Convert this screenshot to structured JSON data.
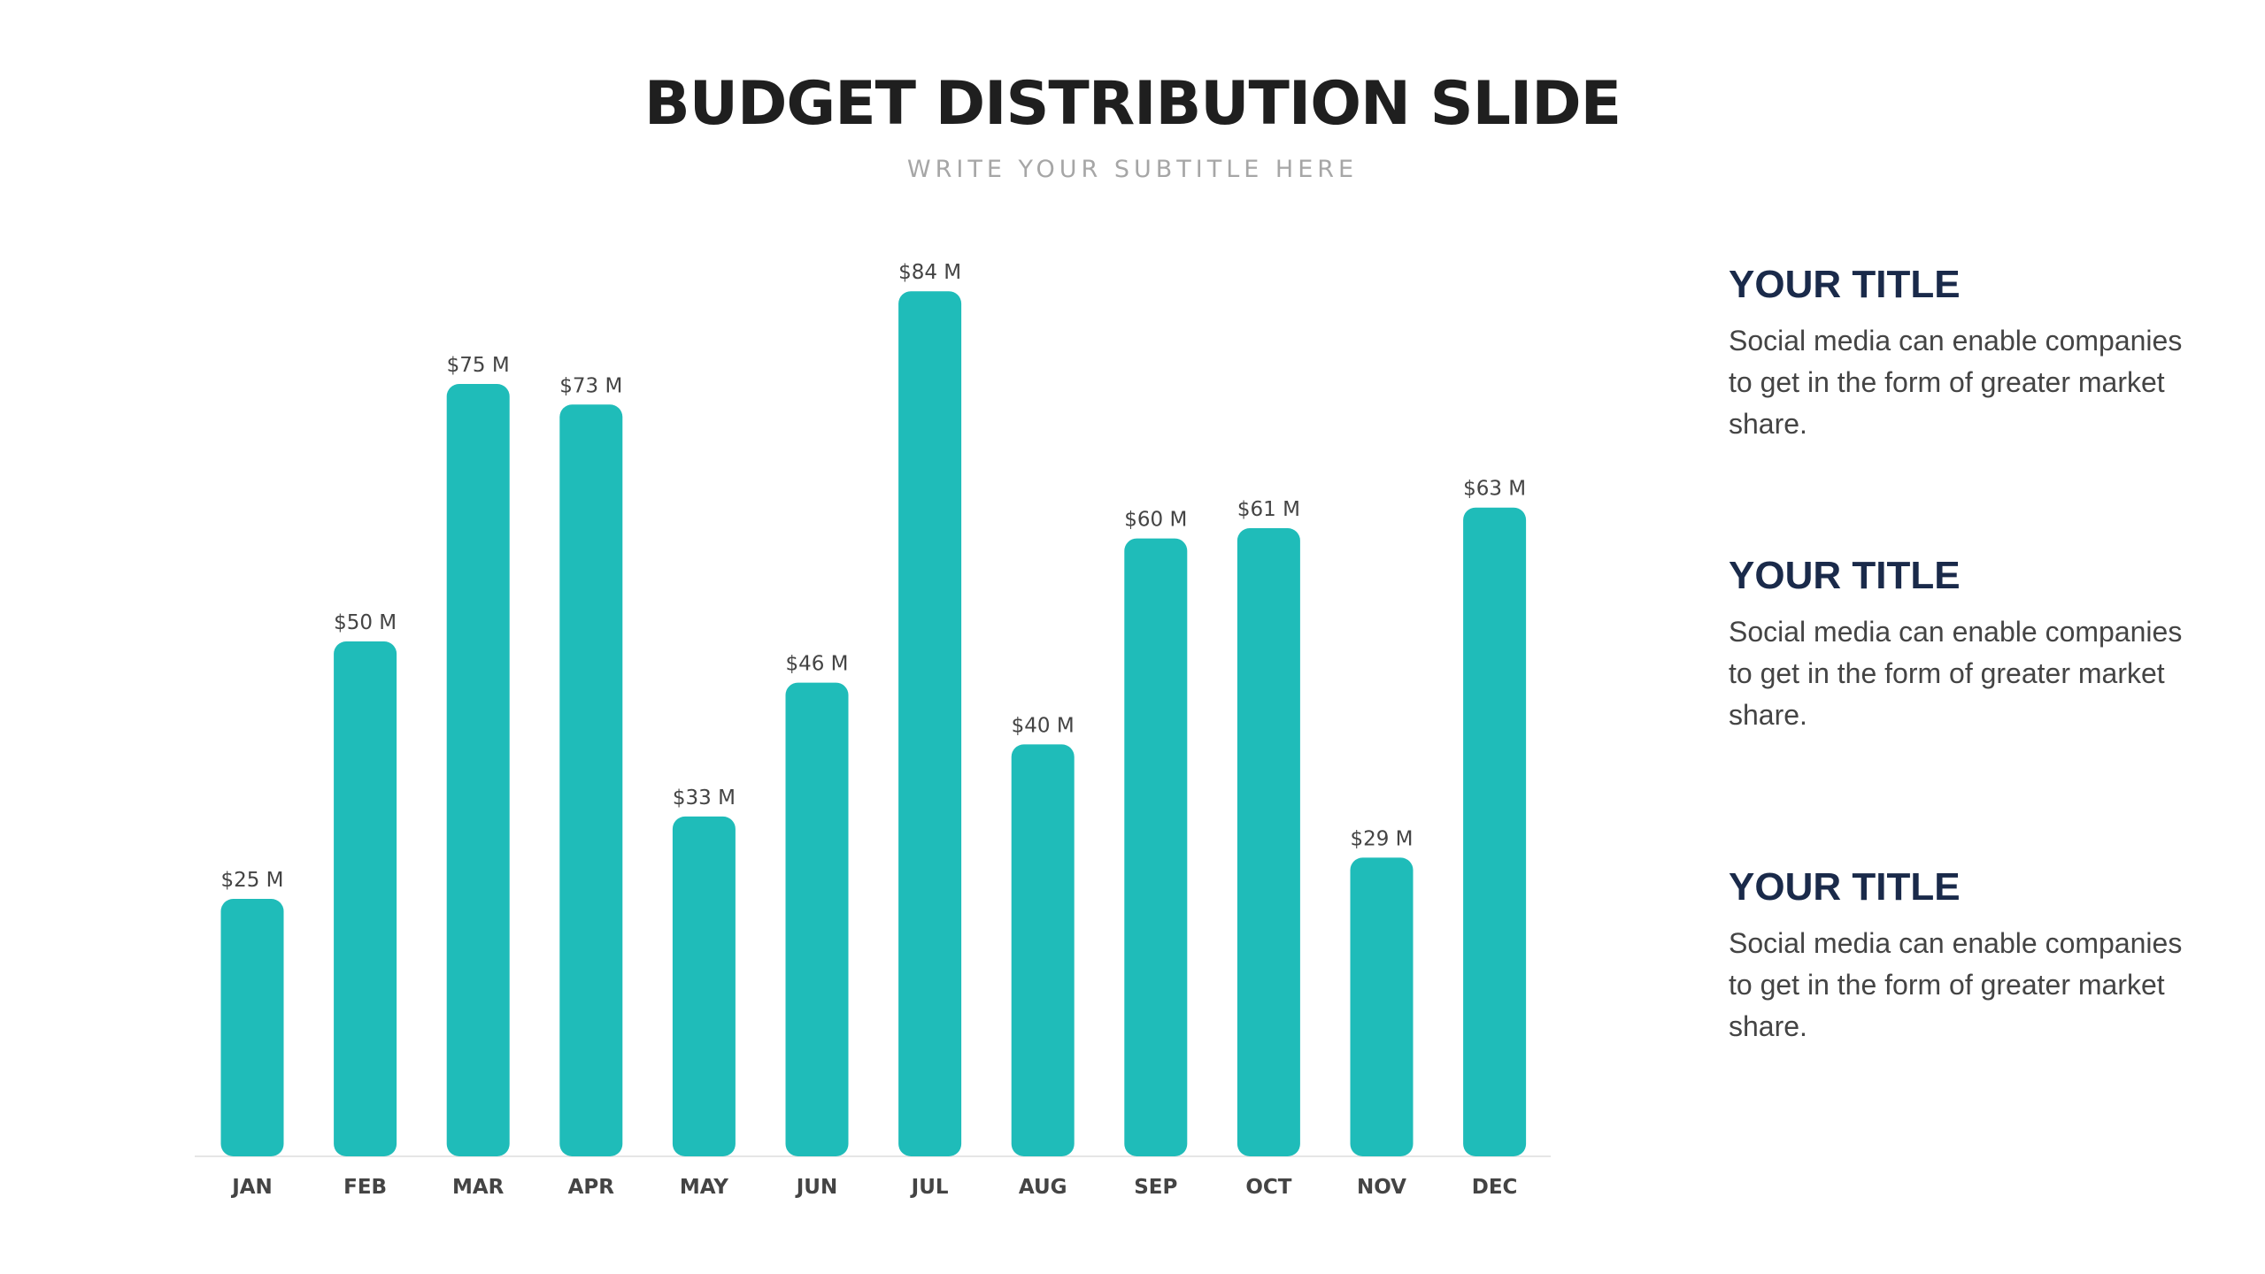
{
  "slide": {
    "title": "BUDGET DISTRIBUTION SLIDE",
    "subtitle": "WRITE YOUR SUBTITLE HERE"
  },
  "chart_data": {
    "type": "bar",
    "categories": [
      "JAN",
      "FEB",
      "MAR",
      "APR",
      "MAY",
      "JUN",
      "JUL",
      "AUG",
      "SEP",
      "OCT",
      "NOV",
      "DEC"
    ],
    "values": [
      25,
      50,
      75,
      73,
      33,
      46,
      84,
      40,
      60,
      61,
      29,
      63
    ],
    "value_labels": [
      "$25 M",
      "$50 M",
      "$75 M",
      "$73 M",
      "$33 M",
      "$46 M",
      "$84 M",
      "$40 M",
      "$60 M",
      "$61 M",
      "$29 M",
      "$63 M"
    ],
    "bar_color": "#1fbcb9",
    "ylim": [
      0,
      84
    ],
    "grid": false,
    "legend": "none"
  },
  "side_panel": {
    "items": [
      {
        "heading": "YOUR TITLE",
        "text": "Social media can enable companies to get in the form of greater market share."
      },
      {
        "heading": "YOUR TITLE",
        "text": "Social media can enable companies to get in the form of greater market share."
      },
      {
        "heading": "YOUR TITLE",
        "text": "Social media can enable companies to get in the form of greater market share."
      }
    ]
  }
}
